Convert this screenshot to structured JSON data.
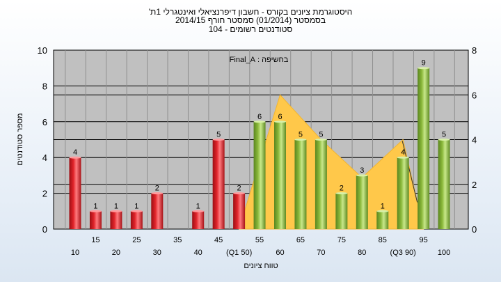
{
  "chart_data": {
    "type": "bar",
    "title_lines": [
      "'היסטוגרמת ציונים בקורס - חשבון דיפרנציאלי ואינטגרלי 1ת",
      "בסמסטר  (01/2014)  סמסטר חורף  2014/15",
      "סטודנטים רשומים - 104"
    ],
    "annotation": "בחשיפה : Final_A",
    "xlabel": "טווח ציונים",
    "ylabel": "מספר סטודנטים",
    "ylim": [
      0,
      10
    ],
    "y2lim": [
      0,
      8
    ],
    "y_ticks": [
      "0",
      "2",
      "4",
      "6",
      "8",
      "10"
    ],
    "y2_ticks": [
      "0",
      "2",
      "4",
      "6",
      "8"
    ],
    "x_tick_labels": [
      "10",
      "15",
      "20",
      "25",
      "30",
      "35",
      "40",
      "45",
      "(Q1 50)",
      "55",
      "60",
      "65",
      "70",
      "75",
      "80",
      "85",
      "(Q3 90)",
      "95",
      "100"
    ],
    "categories": [
      "10",
      "15",
      "20",
      "25",
      "30",
      "35",
      "40",
      "45",
      "50",
      "55",
      "60",
      "65",
      "70",
      "75",
      "80",
      "85",
      "90",
      "95",
      "100"
    ],
    "values": [
      4,
      1,
      1,
      1,
      2,
      0,
      1,
      5,
      2,
      6,
      6,
      5,
      5,
      2,
      3,
      1,
      4,
      9,
      5
    ],
    "value_labels": [
      "4",
      "1",
      "1",
      "1",
      "2",
      "",
      "1",
      "5",
      "2",
      "6",
      "6",
      "5",
      "5",
      "2",
      "3",
      "1",
      "4",
      "9",
      "5"
    ],
    "bar_colors_by_index": [
      "red",
      "red",
      "red",
      "red",
      "red",
      "red",
      "red",
      "red",
      "red",
      "green",
      "green",
      "green",
      "green",
      "green",
      "green",
      "green",
      "green",
      "green",
      "green"
    ],
    "area_series": {
      "x_categories": [
        "50",
        "60",
        "70",
        "80",
        "90",
        "95"
      ],
      "values": [
        0,
        6,
        4,
        2.3,
        4,
        0
      ]
    },
    "colors": {
      "red": "#e0242a",
      "green": "#8ab83a",
      "area": "#ffc84a",
      "plot_bg": "#c0c0c0",
      "grid": "#000000"
    }
  }
}
